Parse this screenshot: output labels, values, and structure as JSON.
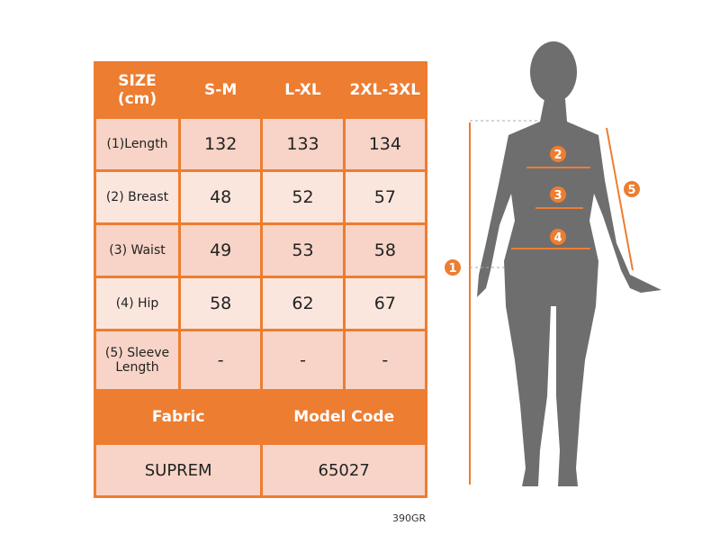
{
  "table": {
    "header": {
      "size": "SIZE (cm)",
      "cols": [
        "S-M",
        "L-XL",
        "2XL-3XL"
      ]
    },
    "rows": [
      {
        "label": "(1)Length",
        "values": [
          "132",
          "133",
          "134"
        ]
      },
      {
        "label": "(2) Breast",
        "values": [
          "48",
          "52",
          "57"
        ]
      },
      {
        "label": "(3) Waist",
        "values": [
          "49",
          "53",
          "58"
        ]
      },
      {
        "label": "(4) Hip",
        "values": [
          "58",
          "62",
          "67"
        ]
      },
      {
        "label": "(5) Sleeve Length",
        "values": [
          "-",
          "-",
          "-"
        ]
      }
    ],
    "fabric_label": "Fabric",
    "model_code_label": "Model Code",
    "fabric": "SUPREM",
    "model_code": "65027"
  },
  "weight": "390GR",
  "figure": {
    "markers": [
      "1",
      "2",
      "3",
      "4",
      "5"
    ]
  },
  "colors": {
    "accent": "#ED7D31",
    "row_a": "#F7D4C7",
    "row_b": "#FBE6DE",
    "silhouette": "#6E6E6E"
  }
}
